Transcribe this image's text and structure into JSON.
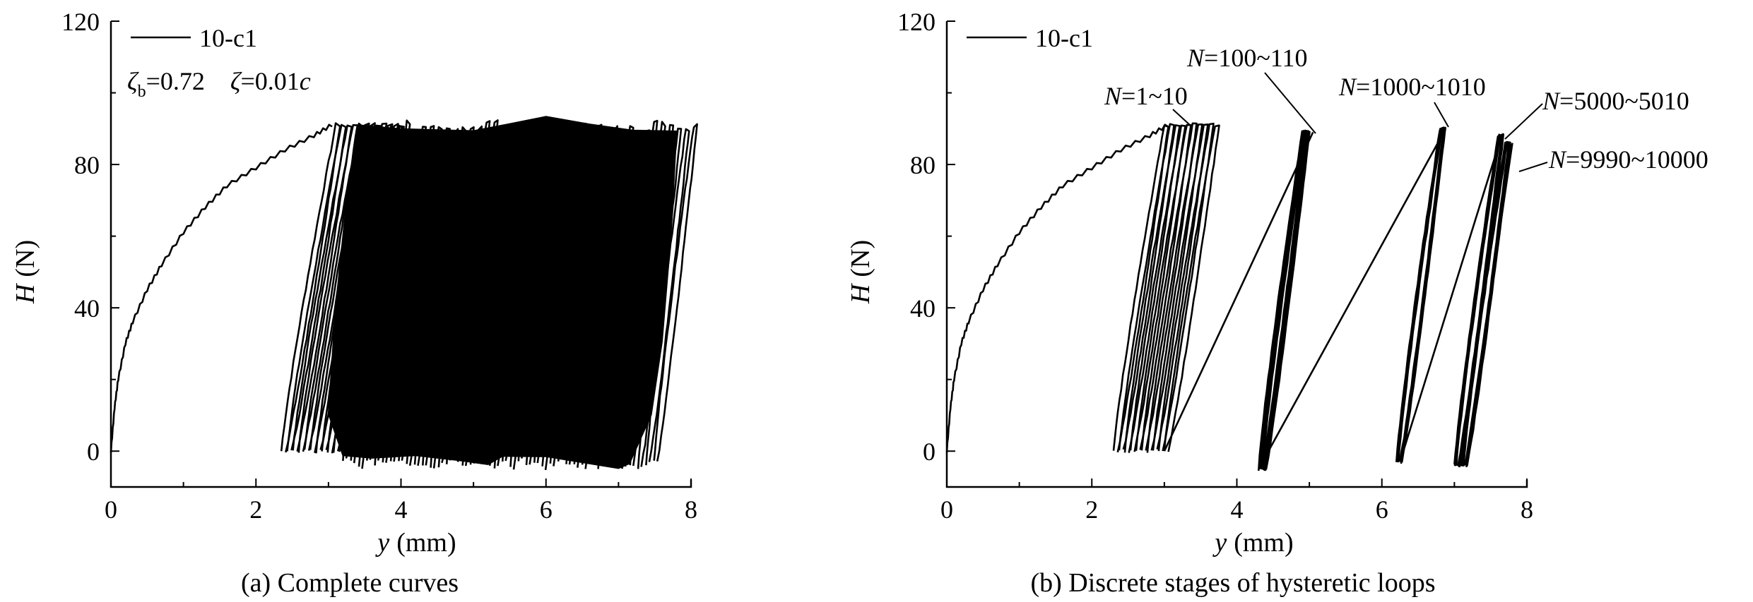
{
  "chart_data": [
    {
      "type": "line",
      "panel": "a",
      "caption": "(a) Complete curves",
      "xlabel_var": "y",
      "xlabel_unit": "(mm)",
      "ylabel_var": "H",
      "ylabel_unit": "(N)",
      "xlim": [
        0,
        8
      ],
      "ylim": [
        -10,
        120
      ],
      "xticks": [
        0,
        2,
        4,
        6,
        8
      ],
      "yticks": [
        0,
        40,
        80,
        120
      ],
      "legend": {
        "entries": [
          "10-c1"
        ],
        "placement": "top-left"
      },
      "params": {
        "zeta_b_symbol": "ζ",
        "zeta_b_sub": "b",
        "zeta_b_value": "=0.72",
        "zeta_symbol": "ζ",
        "zeta_value": "=0.01",
        "zeta_unit": "c"
      },
      "series": [
        {
          "name": "10-c1",
          "monotonic_loading": [
            [
              0,
              0
            ],
            [
              0.05,
              12
            ],
            [
              0.1,
              20
            ],
            [
              0.2,
              30
            ],
            [
              0.3,
              36
            ],
            [
              0.5,
              45
            ],
            [
              0.7,
              52
            ],
            [
              1.0,
              61
            ],
            [
              1.3,
              68
            ],
            [
              1.6,
              74
            ],
            [
              2.0,
              79
            ],
            [
              2.4,
              84
            ],
            [
              2.8,
              88
            ],
            [
              3.05,
              91
            ]
          ],
          "cycle_band": {
            "x_start": [
              2.35,
              7.15
            ],
            "x_end": [
              3.1,
              7.8
            ],
            "y_min": -6,
            "y_max": 92,
            "cycles": 10000
          }
        }
      ]
    },
    {
      "type": "line",
      "panel": "b",
      "caption": "(b) Discrete stages of hysteretic loops",
      "xlabel_var": "y",
      "xlabel_unit": "(mm)",
      "ylabel_var": "H",
      "ylabel_unit": "(N)",
      "xlim": [
        0,
        8
      ],
      "ylim": [
        -10,
        120
      ],
      "xticks": [
        0,
        2,
        4,
        6,
        8
      ],
      "yticks": [
        0,
        40,
        80,
        120
      ],
      "legend": {
        "entries": [
          "10-c1"
        ],
        "placement": "top-left"
      },
      "series": [
        {
          "name": "10-c1",
          "monotonic_loading": [
            [
              0,
              0
            ],
            [
              0.05,
              12
            ],
            [
              0.1,
              20
            ],
            [
              0.2,
              30
            ],
            [
              0.3,
              36
            ],
            [
              0.5,
              45
            ],
            [
              0.7,
              52
            ],
            [
              1.0,
              61
            ],
            [
              1.3,
              68
            ],
            [
              1.6,
              74
            ],
            [
              2.0,
              79
            ],
            [
              2.4,
              84
            ],
            [
              2.8,
              88
            ],
            [
              3.05,
              91
            ]
          ],
          "stages": [
            {
              "label_var": "N",
              "label_value": "=1~10",
              "x_range": [
                2.3,
                3.7
              ],
              "y_range": [
                0,
                91
              ]
            },
            {
              "label_var": "N",
              "label_value": "=100~110",
              "x_range": [
                4.3,
                5.1
              ],
              "y_range": [
                -5,
                89
              ]
            },
            {
              "label_var": "N",
              "label_value": "=1000~1010",
              "x_range": [
                6.2,
                6.9
              ],
              "y_range": [
                -3,
                90
              ]
            },
            {
              "label_var": "N",
              "label_value": "=5000~5010",
              "x_range": [
                7.0,
                7.7
              ],
              "y_range": [
                -4,
                88
              ]
            },
            {
              "label_var": "N",
              "label_value": "=9990~10000",
              "x_range": [
                7.1,
                7.8
              ],
              "y_range": [
                -4,
                86
              ]
            }
          ]
        }
      ]
    }
  ]
}
